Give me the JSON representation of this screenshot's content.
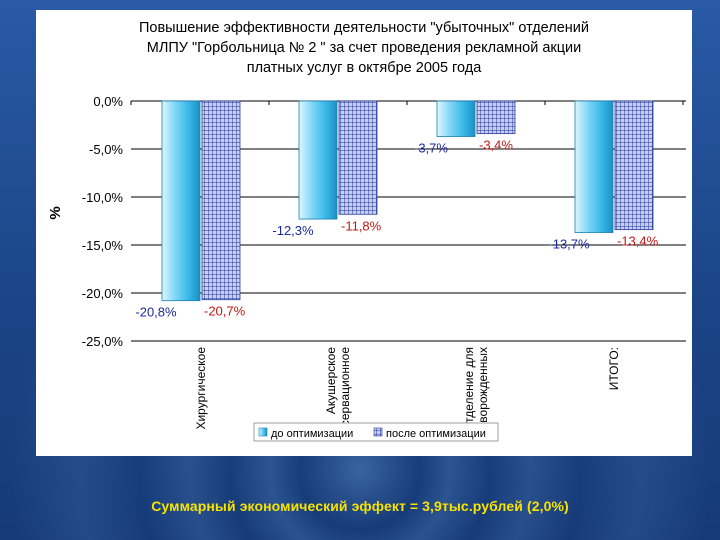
{
  "chart_data": {
    "type": "bar",
    "title_lines": [
      "Повышение эффективности деятельности \"убыточных\" отделений",
      "МЛПУ \"Горбольница № 2 \" за счет проведения рекламной акции",
      "платных услуг в октябре 2005 года"
    ],
    "ylabel": "%",
    "ylim": [
      -25,
      0
    ],
    "yticks": [
      0,
      -5,
      -10,
      -15,
      -20,
      -25
    ],
    "ytick_labels": [
      "0,0%",
      "-5,0%",
      "-10,0%",
      "-15,0%",
      "-20,0%",
      "-25,0%"
    ],
    "categories": [
      [
        "Хирургическое"
      ],
      [
        "Акушерское",
        "обсервационное"
      ],
      [
        "Отделение для",
        "новорожденных"
      ],
      [
        "ИТОГО:"
      ]
    ],
    "series": [
      {
        "name": "до оптимизации",
        "values": [
          -20.8,
          -12.3,
          -3.7,
          -13.7
        ],
        "labels": [
          "-20,8%",
          "-12,3%",
          "-3,7%",
          "-13,7%"
        ]
      },
      {
        "name": "после оптимизации",
        "values": [
          -20.7,
          -11.8,
          -3.4,
          -13.4
        ],
        "labels": [
          "-20,7%",
          "-11,8%",
          "-3,4%",
          "-13,4%"
        ]
      }
    ],
    "grid": true,
    "legend_position": "bottom",
    "colors": {
      "before": "#38b8e8",
      "after": "#3a4fb0",
      "label_before": "#1c2aa0",
      "label_after": "#c01818"
    }
  },
  "caption": "Суммарный экономический эффект = 3,9тыс.рублей (2,0%)"
}
